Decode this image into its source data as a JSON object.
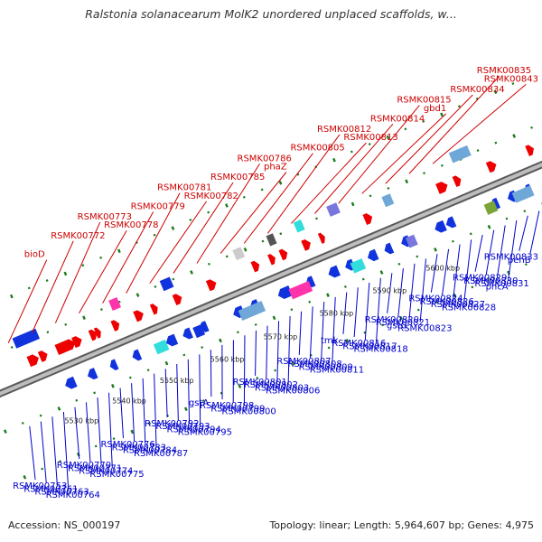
{
  "title": "Ralstonia solanacearum MolK2 unordered unplaced scaffolds, w...",
  "footer": {
    "accession": "Accession: NS_000197",
    "summary": "Topology: linear; Length: 5,964,607 bp; Genes: 4,975"
  },
  "colors": {
    "forward_label": "#cc0000",
    "reverse_label": "#0000cc",
    "forward_gene": "#ee0000",
    "reverse_gene": "#1133dd",
    "backbone": "#8a8a8a",
    "tick_green": "#1a7a1a"
  },
  "scale_labels": [
    "5530 kbp",
    "5540 kbp",
    "5550 kbp",
    "5560 kbp",
    "5570 kbp",
    "5580 kbp",
    "5590 kbp",
    "5600 kbp"
  ],
  "forward_labels": [
    "bioD",
    "RSMK00772",
    "RSMK00773",
    "RSMK00778",
    "RSMK00779",
    "RSMK00781",
    "RSMK00782",
    "RSMK00785",
    "RSMK00786",
    "phaZ",
    "RSMK00805",
    "RSMK00812",
    "RSMK00813",
    "RSMK00814",
    "RSMK00815",
    "gbd1",
    "RSMK00834",
    "RSMK00835",
    "RSMK00843"
  ],
  "reverse_labels": [
    "RSMK00753",
    "RSMK00761",
    "RSMK00763",
    "RSMK00764",
    "RSMK00770",
    "RSMK00771",
    "RSMK00774",
    "RSMK00775",
    "RSMK00776",
    "RSMK00783",
    "RSMK00784",
    "RSMK00787",
    "RSMK00792",
    "RSMK00793",
    "RSMK00794",
    "RSMK00795",
    "gstA",
    "RSMK00798",
    "RSMK00799",
    "RSMK00800",
    "RSMK00801",
    "RSMK00802",
    "RSMK00803",
    "RSMK00806",
    "RSMK00807",
    "RSMK00808",
    "RSMK00809",
    "RSMK00811",
    "tmk",
    "RSMK00816",
    "RSMK00817",
    "RSMK00818",
    "RSMK00820",
    "RSMK00821",
    "gstG",
    "RSMK00823",
    "RSMK00824",
    "RSMK00826",
    "RSMK00827",
    "RSMK00828",
    "RSMK00829",
    "RSMK00830",
    "RSMK00831",
    "pncA",
    "RSMK00833",
    "pehB"
  ]
}
